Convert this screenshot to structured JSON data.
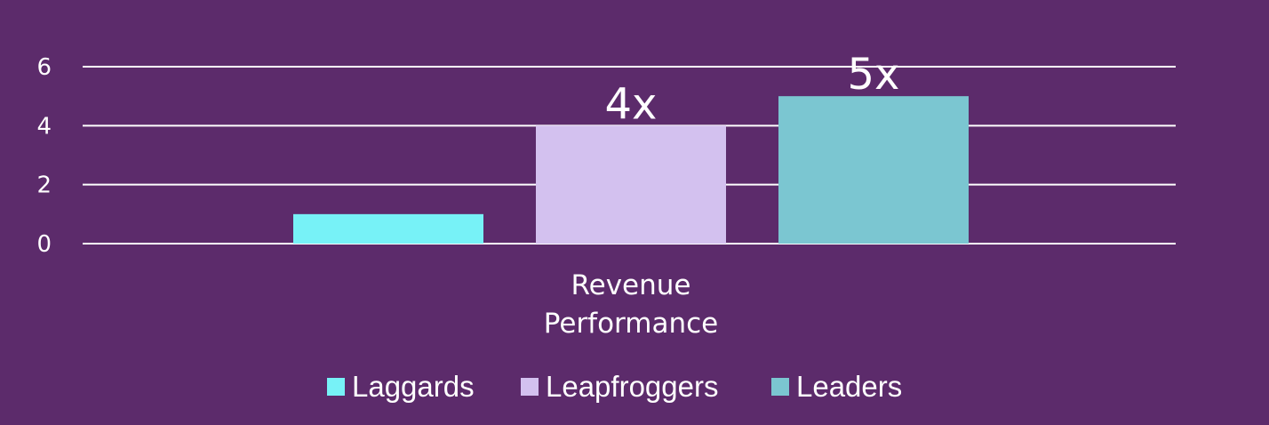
{
  "chart_data": {
    "type": "bar",
    "categories": [
      "Revenue Performance"
    ],
    "category_label_lines": [
      "Revenue",
      "Performance"
    ],
    "series": [
      {
        "name": "Laggards",
        "values": [
          1
        ],
        "color": "#77f2f7",
        "data_label": ""
      },
      {
        "name": "Leapfroggers",
        "values": [
          4
        ],
        "color": "#d3c1ef",
        "data_label": "4x"
      },
      {
        "name": "Leaders",
        "values": [
          5
        ],
        "color": "#7bc6d1",
        "data_label": "5x"
      }
    ],
    "ylim": [
      0,
      6
    ],
    "yticks": [
      "0",
      "2",
      "4",
      "6"
    ],
    "grid": true,
    "legend_position": "bottom",
    "title": "",
    "xlabel": "",
    "ylabel": ""
  },
  "colors": {
    "background": "#5c2b6b",
    "text": "#ffffff",
    "grid": "#ffffff"
  }
}
